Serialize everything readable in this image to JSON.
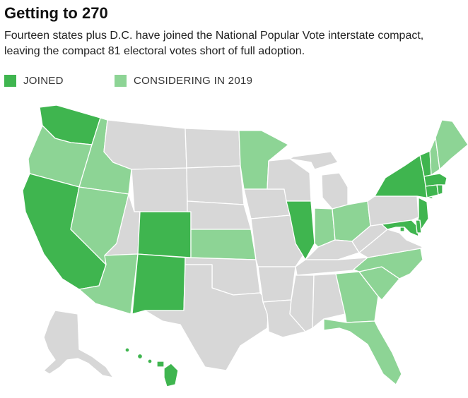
{
  "title": "Getting to 270",
  "subtitle": "Fourteen states plus D.C. have joined the National Popular Vote interstate compact, leaving the compact 81 electoral votes short of full adoption.",
  "legend": [
    {
      "label": "JOINED",
      "color": "#3fb54f"
    },
    {
      "label": "CONSIDERING IN 2019",
      "color": "#8dd495"
    }
  ],
  "colors": {
    "joined": "#3fb54f",
    "considering": "#8dd495",
    "none": "#d7d7d7"
  },
  "states": {
    "joined": [
      "WA",
      "CA",
      "CO",
      "NM",
      "IL",
      "NY",
      "VT",
      "MA",
      "RI",
      "CT",
      "NJ",
      "MD",
      "DE",
      "DC",
      "HI"
    ],
    "considering": [
      "OR",
      "ID",
      "NV",
      "AZ",
      "MN",
      "KS",
      "IN",
      "OH",
      "NC",
      "SC",
      "GA",
      "FL",
      "ME",
      "NH"
    ]
  }
}
